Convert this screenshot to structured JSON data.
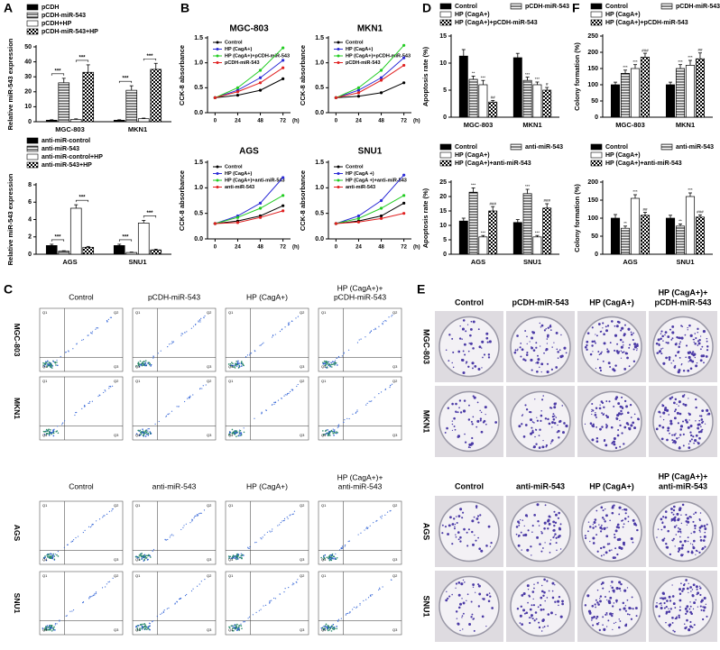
{
  "panel_labels": [
    "A",
    "B",
    "C",
    "D",
    "E",
    "F"
  ],
  "chart_data": [
    {
      "type": "bar",
      "ylabel": "Relative miR-543 expression",
      "categories": [
        "MGC-803",
        "MKN1"
      ],
      "ylim": [
        0,
        50
      ],
      "yticks": [
        0,
        10,
        20,
        30,
        40,
        50
      ],
      "series": [
        {
          "name": "pCDH",
          "pattern": "solid",
          "color": "#000000",
          "values": [
            1,
            1
          ],
          "errors": [
            0.3,
            0.3
          ]
        },
        {
          "name": "pCDH-miR-543",
          "pattern": "hstripe",
          "color": "#000000",
          "values": [
            26,
            21
          ],
          "errors": [
            3,
            3
          ]
        },
        {
          "name": "pCDH+HP",
          "pattern": "open",
          "color": "#000000",
          "values": [
            1.5,
            2
          ],
          "errors": [
            0.4,
            0.4
          ]
        },
        {
          "name": "pCDH-miR-543+HP",
          "pattern": "check",
          "color": "#000000",
          "values": [
            33,
            35
          ],
          "errors": [
            5,
            4
          ]
        }
      ],
      "annotations": [
        [
          "***",
          "***"
        ],
        [
          "***",
          "***"
        ]
      ]
    },
    {
      "type": "bar",
      "ylabel": "Relative miR-543 expression",
      "categories": [
        "AGS",
        "SNU1"
      ],
      "ylim": [
        0,
        8
      ],
      "yticks": [
        0,
        2,
        4,
        6,
        8
      ],
      "series": [
        {
          "name": "anti-miR-control",
          "pattern": "solid",
          "color": "#000000",
          "values": [
            1,
            1
          ],
          "errors": [
            0.15,
            0.15
          ]
        },
        {
          "name": "anti-miR-543",
          "pattern": "hstripe",
          "color": "#000000",
          "values": [
            0.35,
            0.2
          ],
          "errors": [
            0.05,
            0.05
          ]
        },
        {
          "name": "anti-miR-control+HP",
          "pattern": "open",
          "color": "#000000",
          "values": [
            5.3,
            3.6
          ],
          "errors": [
            0.4,
            0.3
          ]
        },
        {
          "name": "anti-miR-543+HP",
          "pattern": "check",
          "color": "#000000",
          "values": [
            0.8,
            0.5
          ],
          "errors": [
            0.1,
            0.08
          ]
        }
      ],
      "annotations": [
        [
          "***",
          "***"
        ],
        [
          "***",
          "***"
        ]
      ]
    },
    {
      "type": "line",
      "title": "MGC-803",
      "ylabel": "CCK-8 absorbance",
      "x": [
        0,
        24,
        48,
        72
      ],
      "xlim": [
        -8,
        80
      ],
      "xticks": [
        0,
        24,
        48,
        72
      ],
      "xunit": "(h)",
      "ylim": [
        0,
        1.5
      ],
      "yticks": [
        {
          "value": 0,
          "label": "0.0"
        },
        0.5,
        {
          "value": 1,
          "label": "1.0"
        },
        1.5
      ],
      "series": [
        {
          "name": "Control",
          "color": "#000000",
          "values": [
            0.3,
            0.35,
            0.45,
            0.68
          ]
        },
        {
          "name": "HP (CagA+)",
          "color": "#2b2bd6",
          "values": [
            0.3,
            0.45,
            0.7,
            1.05
          ]
        },
        {
          "name": "HP (CagA+)+pCDH-miR-543",
          "color": "#22cc22",
          "values": [
            0.3,
            0.5,
            0.85,
            1.3
          ]
        },
        {
          "name": "pCDH-miR-543",
          "color": "#e02020",
          "values": [
            0.3,
            0.42,
            0.6,
            0.9
          ]
        }
      ]
    },
    {
      "type": "line",
      "title": "MKN1",
      "ylabel": "CCK-8 absorbance",
      "x": [
        0,
        24,
        48,
        72
      ],
      "xlim": [
        -8,
        80
      ],
      "xticks": [
        0,
        24,
        48,
        72
      ],
      "xunit": "(h)",
      "ylim": [
        0,
        1.5
      ],
      "yticks": [
        {
          "value": 0,
          "label": "0.0"
        },
        0.5,
        {
          "value": 1,
          "label": "1.0"
        },
        1.5
      ],
      "series": [
        {
          "name": "Control",
          "color": "#000000",
          "values": [
            0.3,
            0.33,
            0.4,
            0.6
          ]
        },
        {
          "name": "HP (CagA+)",
          "color": "#2b2bd6",
          "values": [
            0.3,
            0.45,
            0.7,
            1.1
          ]
        },
        {
          "name": "HP (CagA+)+pCDH-miR-543",
          "color": "#22cc22",
          "values": [
            0.3,
            0.5,
            0.85,
            1.35
          ]
        },
        {
          "name": "pCDH-miR-543",
          "color": "#e02020",
          "values": [
            0.3,
            0.4,
            0.65,
            0.95
          ]
        }
      ]
    },
    {
      "type": "line",
      "title": "AGS",
      "ylabel": "CCK-8 absorbance",
      "x": [
        0,
        24,
        48,
        72
      ],
      "xlim": [
        -8,
        80
      ],
      "xticks": [
        0,
        24,
        48,
        72
      ],
      "xunit": "(h)",
      "ylim": [
        0,
        1.5
      ],
      "yticks": [
        {
          "value": 0,
          "label": "0.0"
        },
        0.5,
        {
          "value": 1,
          "label": "1.0"
        },
        1.5
      ],
      "series": [
        {
          "name": "Control",
          "color": "#000000",
          "values": [
            0.3,
            0.35,
            0.45,
            0.65
          ]
        },
        {
          "name": "HP (CagA+)",
          "color": "#2b2bd6",
          "values": [
            0.3,
            0.45,
            0.7,
            1.2
          ]
        },
        {
          "name": "HP (CagA+)+anti-miR-543",
          "color": "#22cc22",
          "values": [
            0.3,
            0.42,
            0.6,
            0.85
          ]
        },
        {
          "name": "anti-miR-543",
          "color": "#e02020",
          "values": [
            0.3,
            0.32,
            0.42,
            0.55
          ]
        }
      ]
    },
    {
      "type": "line",
      "title": "SNU1",
      "ylabel": "CCK-8 absorbance",
      "x": [
        0,
        24,
        48,
        72
      ],
      "xlim": [
        -8,
        80
      ],
      "xticks": [
        0,
        24,
        48,
        72
      ],
      "xunit": "(h)",
      "ylim": [
        0,
        1.5
      ],
      "yticks": [
        {
          "value": 0,
          "label": "0.0"
        },
        0.5,
        {
          "value": 1,
          "label": "1.0"
        },
        1.5
      ],
      "series": [
        {
          "name": "Control",
          "color": "#000000",
          "values": [
            0.3,
            0.35,
            0.45,
            0.7
          ]
        },
        {
          "name": "HP (CagA +)",
          "color": "#2b2bd6",
          "values": [
            0.3,
            0.45,
            0.75,
            1.25
          ]
        },
        {
          "name": "HP (CagA +)+anti-miR-543",
          "color": "#22cc22",
          "values": [
            0.3,
            0.4,
            0.6,
            0.85
          ]
        },
        {
          "name": "anti-miR-543",
          "color": "#e02020",
          "values": [
            0.3,
            0.33,
            0.4,
            0.5
          ]
        }
      ]
    },
    {
      "type": "bar",
      "ylabel": "Apoptosis rate (%)",
      "categories": [
        "MGC-803",
        "MKN1"
      ],
      "ylim": [
        0,
        15
      ],
      "yticks": [
        0,
        5,
        10,
        15
      ],
      "series": [
        {
          "name": "Control",
          "pattern": "solid",
          "color": "#000000",
          "values": [
            11.3,
            11
          ],
          "errors": [
            1.2,
            0.8
          ]
        },
        {
          "name": "pCDH-miR-543",
          "pattern": "hstripe",
          "color": "#000000",
          "values": [
            7,
            6.8
          ],
          "errors": [
            0.6,
            0.6
          ],
          "marks": [
            "**",
            "***"
          ]
        },
        {
          "name": "HP (CagA+)",
          "pattern": "open",
          "color": "#000000",
          "values": [
            6,
            6
          ],
          "errors": [
            0.8,
            0.5
          ],
          "marks": [
            "***",
            "***"
          ]
        },
        {
          "name": "HP (CagA+)+pCDH-miR-543",
          "pattern": "check",
          "color": "#000000",
          "values": [
            2.8,
            5
          ],
          "errors": [
            0.3,
            0.5
          ],
          "marks": [
            "##",
            "#"
          ]
        }
      ]
    },
    {
      "type": "bar",
      "ylabel": "Apoptosis rate (%)",
      "categories": [
        "AGS",
        "SNU1"
      ],
      "ylim": [
        0,
        25
      ],
      "yticks": [
        0,
        5,
        10,
        15,
        20,
        25
      ],
      "series": [
        {
          "name": "Control",
          "pattern": "solid",
          "color": "#000000",
          "values": [
            11.5,
            11
          ],
          "errors": [
            1,
            1
          ]
        },
        {
          "name": "anti-miR-543",
          "pattern": "hstripe",
          "color": "#000000",
          "values": [
            21.5,
            21
          ],
          "errors": [
            1.5,
            1.5
          ],
          "marks": [
            "***",
            "***"
          ]
        },
        {
          "name": "HP (CagA+)",
          "pattern": "open",
          "color": "#000000",
          "values": [
            6,
            6
          ],
          "errors": [
            0.5,
            0.5
          ],
          "marks": [
            "***",
            "***"
          ]
        },
        {
          "name": "HP (CagA+)+anti-miR-543",
          "pattern": "check",
          "color": "#000000",
          "values": [
            15,
            16
          ],
          "errors": [
            1.5,
            1.5
          ],
          "marks": [
            "###",
            "###"
          ]
        }
      ]
    },
    {
      "type": "bar",
      "ylabel": "Colony formation (%)",
      "categories": [
        "MGC-803",
        "MKN1"
      ],
      "ylim": [
        0,
        250
      ],
      "yticks": [
        0,
        50,
        100,
        150,
        200,
        250
      ],
      "series": [
        {
          "name": "Control",
          "pattern": "solid",
          "color": "#000000",
          "values": [
            100,
            100
          ],
          "errors": [
            8,
            8
          ]
        },
        {
          "name": "pCDH-miR-543",
          "pattern": "hstripe",
          "color": "#000000",
          "values": [
            135,
            150
          ],
          "errors": [
            10,
            12
          ],
          "marks": [
            "***",
            "***"
          ]
        },
        {
          "name": "HP (CagA+)",
          "pattern": "open",
          "color": "#000000",
          "values": [
            150,
            160
          ],
          "errors": [
            12,
            15
          ],
          "marks": [
            "***",
            "***"
          ]
        },
        {
          "name": "HP (CagA+)+pCDH-miR-543",
          "pattern": "check",
          "color": "#000000",
          "values": [
            185,
            180
          ],
          "errors": [
            12,
            18
          ],
          "marks": [
            "###",
            "##"
          ]
        }
      ]
    },
    {
      "type": "bar",
      "ylabel": "Colony formation (%)",
      "categories": [
        "AGS",
        "SNU1"
      ],
      "ylim": [
        0,
        200
      ],
      "yticks": [
        0,
        50,
        100,
        150,
        200
      ],
      "series": [
        {
          "name": "Control",
          "pattern": "solid",
          "color": "#000000",
          "values": [
            100,
            100
          ],
          "errors": [
            10,
            8
          ]
        },
        {
          "name": "anti-miR-543",
          "pattern": "hstripe",
          "color": "#000000",
          "values": [
            72,
            78
          ],
          "errors": [
            6,
            6
          ],
          "marks": [
            "**",
            "**"
          ]
        },
        {
          "name": "HP (CagA+)",
          "pattern": "open",
          "color": "#000000",
          "values": [
            155,
            160
          ],
          "errors": [
            10,
            10
          ],
          "marks": [
            "***",
            "***"
          ]
        },
        {
          "name": "HP (CagA+)+anti-miR-543",
          "pattern": "check",
          "color": "#000000",
          "values": [
            108,
            103
          ],
          "errors": [
            8,
            6
          ],
          "marks": [
            "##",
            "###"
          ]
        }
      ]
    }
  ],
  "flow_cytometry": {
    "quadrants": [
      "Q1",
      "Q2",
      "Q3",
      "Q4"
    ],
    "groups": [
      {
        "columns": [
          [
            "Control"
          ],
          [
            "pCDH-miR-543"
          ],
          [
            "HP (CagA+)"
          ],
          [
            "HP (CagA+)+",
            "pCDH-miR-543"
          ]
        ],
        "rows": [
          "MGC-803",
          "MKN1"
        ]
      },
      {
        "columns": [
          [
            "Control"
          ],
          [
            "anti-miR-543"
          ],
          [
            "HP (CagA+)"
          ],
          [
            "HP (CagA+)+",
            "anti-miR-543"
          ]
        ],
        "rows": [
          "AGS",
          "SNU1"
        ]
      }
    ]
  },
  "colony_images": {
    "groups": [
      {
        "columns": [
          [
            "Control"
          ],
          [
            "pCDH-miR-543"
          ],
          [
            "HP (CagA+)"
          ],
          [
            "HP (CagA+)+",
            "pCDH-miR-543"
          ]
        ],
        "rows": [
          "MGC-803",
          "MKN1"
        ]
      },
      {
        "columns": [
          [
            "Control"
          ],
          [
            "anti-miR-543"
          ],
          [
            "HP (CagA+)"
          ],
          [
            "HP (CagA+)+",
            "anti-miR-543"
          ]
        ],
        "rows": [
          "AGS",
          "SNU1"
        ]
      }
    ]
  }
}
